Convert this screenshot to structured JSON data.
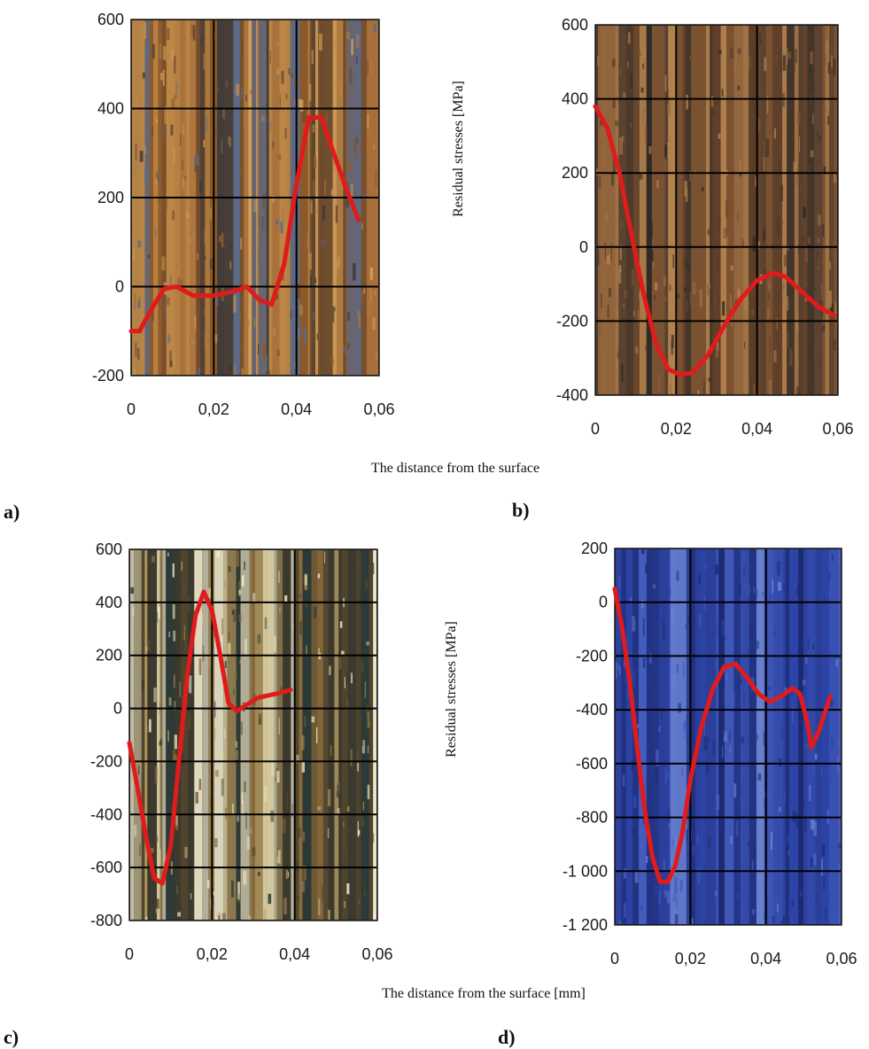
{
  "figure": {
    "xlabel_top": "The distance from the surface",
    "xlabel_bottom": "The distance from the surface [mm]",
    "ylabel": "Residual stresses  [MPa]"
  },
  "chart_data": [
    {
      "type": "line",
      "panel": "a)",
      "xlim": [
        0,
        0.06
      ],
      "ylim": [
        -200,
        600
      ],
      "x_ticks": [
        "0",
        "0,02",
        "0,04",
        "0,06"
      ],
      "y_ticks": [
        "600",
        "400",
        "200",
        "0",
        "-200"
      ],
      "grid": true,
      "background_palette": [
        "#8c5a2b",
        "#c08a48",
        "#6b4a2e",
        "#5a6a8a",
        "#b07840",
        "#3e3a3a",
        "#d2a05a"
      ],
      "series": [
        {
          "color": "#e01b1b",
          "points": [
            [
              0,
              -100
            ],
            [
              0.002,
              -100
            ],
            [
              0.005,
              -50
            ],
            [
              0.008,
              -5
            ],
            [
              0.011,
              0
            ],
            [
              0.015,
              -20
            ],
            [
              0.02,
              -20
            ],
            [
              0.025,
              -10
            ],
            [
              0.028,
              0
            ],
            [
              0.031,
              -30
            ],
            [
              0.034,
              -40
            ],
            [
              0.037,
              50
            ],
            [
              0.04,
              230
            ],
            [
              0.043,
              380
            ],
            [
              0.046,
              380
            ],
            [
              0.049,
              300
            ],
            [
              0.052,
              220
            ],
            [
              0.055,
              150
            ]
          ]
        }
      ]
    },
    {
      "type": "line",
      "panel": "b)",
      "xlim": [
        0,
        0.06
      ],
      "ylim": [
        -400,
        600
      ],
      "x_ticks": [
        "0",
        "0,02",
        "0,04",
        "0,06"
      ],
      "y_ticks": [
        "600",
        "400",
        "200",
        "0",
        "-200",
        "-400"
      ],
      "grid": true,
      "background_palette": [
        "#7a5232",
        "#9a6a40",
        "#2e2a26",
        "#5c3e28",
        "#b5844e",
        "#4a3a30",
        "#a87a4a"
      ],
      "series": [
        {
          "color": "#e01b1b",
          "points": [
            [
              0,
              380
            ],
            [
              0.003,
              320
            ],
            [
              0.006,
              200
            ],
            [
              0.009,
              30
            ],
            [
              0.012,
              -130
            ],
            [
              0.015,
              -260
            ],
            [
              0.018,
              -330
            ],
            [
              0.021,
              -345
            ],
            [
              0.024,
              -340
            ],
            [
              0.028,
              -290
            ],
            [
              0.032,
              -210
            ],
            [
              0.036,
              -140
            ],
            [
              0.04,
              -90
            ],
            [
              0.044,
              -70
            ],
            [
              0.047,
              -80
            ],
            [
              0.051,
              -120
            ],
            [
              0.055,
              -160
            ],
            [
              0.059,
              -185
            ]
          ]
        }
      ]
    },
    {
      "type": "line",
      "panel": "c)",
      "xlim": [
        0,
        0.06
      ],
      "ylim": [
        -800,
        600
      ],
      "x_ticks": [
        "0",
        "0,02",
        "0,04",
        "0,06"
      ],
      "y_ticks": [
        "600",
        "400",
        "200",
        "0",
        "-200",
        "-400",
        "-600",
        "-800"
      ],
      "grid": true,
      "background_palette": [
        "#3c3a2e",
        "#2a3a3a",
        "#b59a60",
        "#8a6a3a",
        "#e2d6a8",
        "#f2ecd0",
        "#5a4a2e"
      ],
      "series": [
        {
          "color": "#e01b1b",
          "points": [
            [
              0,
              -130
            ],
            [
              0.002,
              -300
            ],
            [
              0.004,
              -480
            ],
            [
              0.006,
              -640
            ],
            [
              0.008,
              -660
            ],
            [
              0.01,
              -520
            ],
            [
              0.012,
              -200
            ],
            [
              0.014,
              120
            ],
            [
              0.016,
              350
            ],
            [
              0.018,
              440
            ],
            [
              0.02,
              370
            ],
            [
              0.022,
              200
            ],
            [
              0.024,
              20
            ],
            [
              0.026,
              -10
            ],
            [
              0.028,
              10
            ],
            [
              0.031,
              40
            ],
            [
              0.034,
              50
            ],
            [
              0.037,
              60
            ],
            [
              0.039,
              70
            ]
          ]
        }
      ]
    },
    {
      "type": "line",
      "panel": "d)",
      "xlim": [
        0,
        0.06
      ],
      "ylim": [
        -1200,
        200
      ],
      "x_ticks": [
        "0",
        "0,02",
        "0,04",
        "0,06"
      ],
      "y_ticks": [
        "200",
        "0",
        "-200",
        "-400",
        "-600",
        "-800",
        "-1 000",
        "-1 200"
      ],
      "grid": true,
      "background_palette": [
        "#2b3f9a",
        "#3a52b5",
        "#1f2f7a",
        "#4a62c4",
        "#2c44a8",
        "#6a82d0",
        "#1c2a6e"
      ],
      "series": [
        {
          "color": "#e01b1b",
          "points": [
            [
              0,
              50
            ],
            [
              0.002,
              -100
            ],
            [
              0.004,
              -300
            ],
            [
              0.006,
              -550
            ],
            [
              0.008,
              -780
            ],
            [
              0.01,
              -950
            ],
            [
              0.012,
              -1040
            ],
            [
              0.014,
              -1040
            ],
            [
              0.016,
              -980
            ],
            [
              0.018,
              -850
            ],
            [
              0.02,
              -660
            ],
            [
              0.023,
              -460
            ],
            [
              0.026,
              -320
            ],
            [
              0.029,
              -240
            ],
            [
              0.032,
              -230
            ],
            [
              0.035,
              -280
            ],
            [
              0.038,
              -340
            ],
            [
              0.041,
              -370
            ],
            [
              0.044,
              -350
            ],
            [
              0.047,
              -320
            ],
            [
              0.049,
              -340
            ],
            [
              0.051,
              -450
            ],
            [
              0.052,
              -540
            ],
            [
              0.054,
              -480
            ],
            [
              0.057,
              -350
            ]
          ]
        }
      ]
    }
  ]
}
